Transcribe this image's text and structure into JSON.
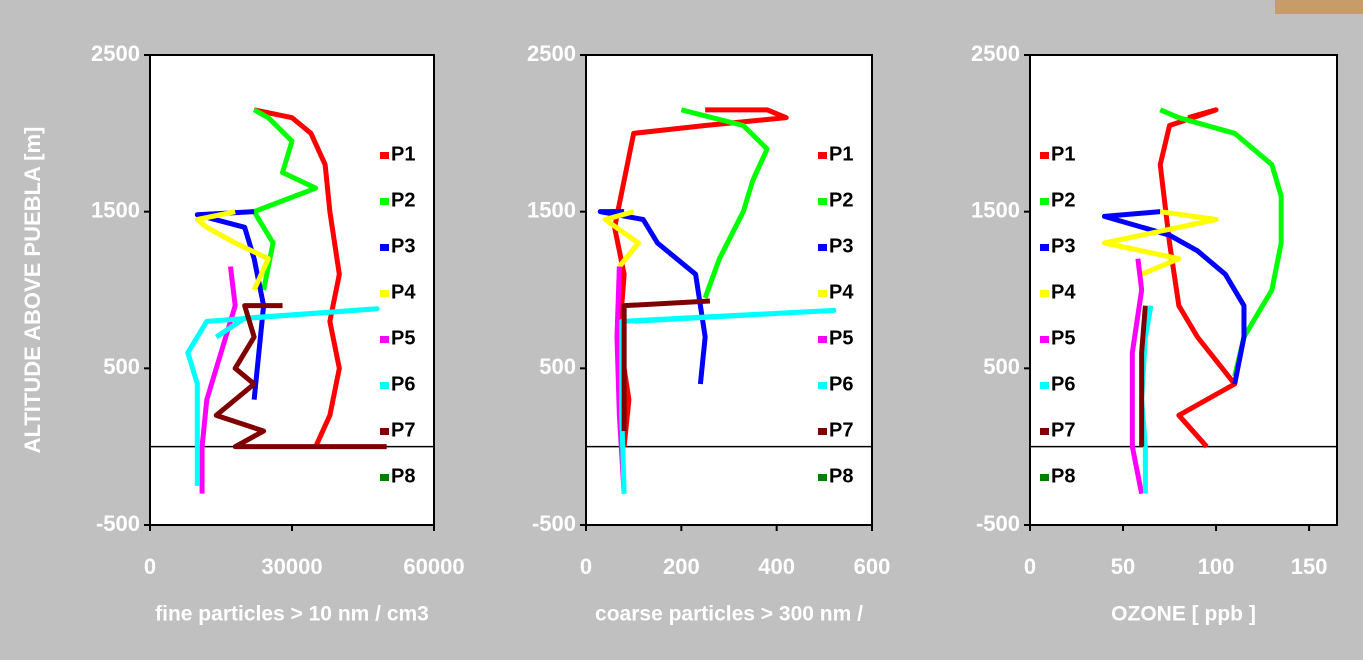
{
  "chart_data": [
    {
      "type": "line",
      "ylabel": "ALTITUDE ABOVE PUEBLA  [m]",
      "xlabel": "fine particles > 10 nm / cm3",
      "xlim": [
        0,
        60000
      ],
      "ylim": [
        -500,
        2500
      ],
      "xticks": [
        0,
        30000,
        60000
      ],
      "yticks": [
        -500,
        500,
        1500,
        2500
      ],
      "hline": 0,
      "legend": "right",
      "series": [
        {
          "name": "P1",
          "color": "#ff0000",
          "x": [
            35000,
            38000,
            40000,
            38000,
            40000,
            38000,
            37000,
            34000,
            30000,
            22000
          ],
          "values": [
            0,
            200,
            500,
            800,
            1100,
            1500,
            1800,
            2000,
            2100,
            2150
          ]
        },
        {
          "name": "P2",
          "color": "#00ff00",
          "x": [
            24000,
            26000,
            22000,
            35000,
            28000,
            30000,
            25000,
            22000
          ],
          "values": [
            1000,
            1300,
            1500,
            1650,
            1750,
            1950,
            2100,
            2150
          ]
        },
        {
          "name": "P3",
          "color": "#0000ff",
          "x": [
            22000,
            23000,
            24000,
            22000,
            20000,
            10000,
            22000
          ],
          "values": [
            300,
            600,
            900,
            1200,
            1400,
            1480,
            1500
          ]
        },
        {
          "name": "P4",
          "color": "#ffff00",
          "x": [
            22000,
            25000,
            18000,
            12000,
            10000,
            18000
          ],
          "values": [
            1000,
            1200,
            1300,
            1400,
            1450,
            1500
          ]
        },
        {
          "name": "P5",
          "color": "#ff00ff",
          "x": [
            11000,
            11000,
            12000,
            15000,
            18000,
            17000
          ],
          "values": [
            -300,
            0,
            300,
            600,
            900,
            1150
          ]
        },
        {
          "name": "P6",
          "color": "#00ffff",
          "x": [
            10000,
            10000,
            10000,
            8000,
            12000,
            48000,
            20000,
            14000
          ],
          "values": [
            -250,
            100,
            400,
            600,
            800,
            880,
            820,
            700
          ]
        },
        {
          "name": "P7",
          "color": "#800000",
          "x": [
            50000,
            18000,
            24000,
            14000,
            22000,
            18000,
            22000,
            20000,
            28000
          ],
          "values": [
            0,
            0,
            100,
            200,
            400,
            500,
            700,
            900,
            900
          ]
        },
        {
          "name": "P8",
          "color": "#008000",
          "x": [],
          "values": []
        }
      ]
    },
    {
      "type": "line",
      "xlabel": "coarse particles > 300 nm /",
      "xlim": [
        0,
        600
      ],
      "ylim": [
        -500,
        2500
      ],
      "xticks": [
        0,
        200,
        400,
        600
      ],
      "yticks": [
        -500,
        500,
        1500,
        2500
      ],
      "hline": 0,
      "legend": "right",
      "series": [
        {
          "name": "P1",
          "color": "#ff0000",
          "x": [
            80,
            90,
            70,
            80,
            60,
            80,
            100,
            250,
            420,
            380,
            250
          ],
          "values": [
            0,
            300,
            700,
            1100,
            1400,
            1700,
            2000,
            2050,
            2100,
            2150,
            2150
          ]
        },
        {
          "name": "P2",
          "color": "#00ff00",
          "x": [
            250,
            280,
            330,
            350,
            380,
            330,
            200
          ],
          "values": [
            950,
            1200,
            1500,
            1700,
            1900,
            2050,
            2150
          ]
        },
        {
          "name": "P3",
          "color": "#0000ff",
          "x": [
            240,
            250,
            240,
            230,
            150,
            120,
            30,
            80
          ],
          "values": [
            400,
            700,
            900,
            1100,
            1300,
            1450,
            1500,
            1500
          ]
        },
        {
          "name": "P4",
          "color": "#ffff00",
          "x": [
            70,
            110,
            40,
            100
          ],
          "values": [
            1150,
            1300,
            1450,
            1500
          ]
        },
        {
          "name": "P5",
          "color": "#ff00ff",
          "x": [
            80,
            70,
            65,
            70
          ],
          "values": [
            -300,
            200,
            700,
            1150
          ]
        },
        {
          "name": "P6",
          "color": "#00ffff",
          "x": [
            80,
            75,
            75,
            520,
            100
          ],
          "values": [
            -300,
            200,
            800,
            870,
            800
          ]
        },
        {
          "name": "P7",
          "color": "#800000",
          "x": [
            80,
            80,
            80,
            260
          ],
          "values": [
            100,
            500,
            900,
            930
          ]
        },
        {
          "name": "P8",
          "color": "#008000",
          "x": [],
          "values": []
        }
      ]
    },
    {
      "type": "line",
      "xlabel": "OZONE [ ppb ]",
      "xlim": [
        0,
        165
      ],
      "ylim": [
        -500,
        2500
      ],
      "xticks": [
        0,
        50,
        100,
        150
      ],
      "yticks": [
        -500,
        500,
        1500,
        2500
      ],
      "hline": 0,
      "legend": "left",
      "series": [
        {
          "name": "P1",
          "color": "#ff0000",
          "x": [
            95,
            80,
            110,
            90,
            80,
            75,
            70,
            75,
            100,
            85
          ],
          "values": [
            0,
            200,
            400,
            700,
            900,
            1300,
            1800,
            2050,
            2150,
            2100
          ]
        },
        {
          "name": "P2",
          "color": "#00ff00",
          "x": [
            110,
            115,
            130,
            135,
            135,
            130,
            110,
            80,
            70
          ],
          "values": [
            450,
            700,
            1000,
            1300,
            1600,
            1800,
            2000,
            2100,
            2150
          ]
        },
        {
          "name": "P3",
          "color": "#0000ff",
          "x": [
            110,
            115,
            115,
            105,
            90,
            75,
            40,
            70
          ],
          "values": [
            400,
            700,
            900,
            1100,
            1250,
            1350,
            1470,
            1500
          ]
        },
        {
          "name": "P4",
          "color": "#ffff00",
          "x": [
            60,
            80,
            40,
            100,
            70
          ],
          "values": [
            1100,
            1200,
            1300,
            1450,
            1500
          ]
        },
        {
          "name": "P5",
          "color": "#ff00ff",
          "x": [
            60,
            55,
            55,
            55,
            60,
            58
          ],
          "values": [
            -300,
            0,
            300,
            600,
            1000,
            1200
          ]
        },
        {
          "name": "P6",
          "color": "#00ffff",
          "x": [
            62,
            62,
            60,
            62,
            65
          ],
          "values": [
            -300,
            0,
            300,
            700,
            900
          ]
        },
        {
          "name": "P7",
          "color": "#800000",
          "x": [
            60,
            60,
            60,
            62
          ],
          "values": [
            0,
            300,
            600,
            900
          ]
        },
        {
          "name": "P8",
          "color": "#008000",
          "x": [],
          "values": []
        }
      ]
    }
  ]
}
